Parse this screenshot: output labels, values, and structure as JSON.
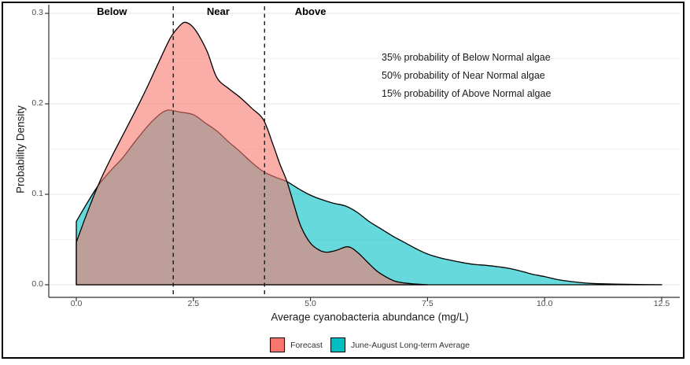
{
  "figure": {
    "background": "#FFFFFF",
    "border_color": "#000000"
  },
  "chart_data": {
    "type": "area",
    "subtype": "overlapping-density-curves",
    "title": "",
    "xlabel": "Average cyanobacteria abundance (mg/L)",
    "ylabel": "Probability Density",
    "xlim": [
      0,
      12.5
    ],
    "ylim": [
      0,
      0.3
    ],
    "grid": "horizontal-only",
    "x_ticks": {
      "values": [
        0,
        2.5,
        5,
        7.5,
        10,
        12.5
      ],
      "labels": [
        "0.0",
        "2.5",
        "5.0",
        "7.5",
        "10.0",
        "12.5"
      ]
    },
    "y_ticks": {
      "values": [
        0,
        0.1,
        0.2,
        0.3
      ],
      "labels": [
        "0.0",
        "0.1",
        "0.2",
        "0.3"
      ]
    },
    "y_minor_gridlines": [
      0.05,
      0.15,
      0.25
    ],
    "threshold_lines": {
      "style": "dashed",
      "color": "#1A1A1A",
      "x_values": [
        2.07,
        4.02
      ]
    },
    "region_labels": [
      {
        "text": "Below",
        "x": 0.76
      },
      {
        "text": "Near",
        "x": 3.03
      },
      {
        "text": "Above",
        "x": 5.0
      }
    ],
    "annotations": [
      {
        "text": "35% probability of Below Normal algae"
      },
      {
        "text": "50% probability of Near Normal algae"
      },
      {
        "text": "15% probability of Above Normal algae"
      }
    ],
    "series": [
      {
        "name": "June-August Long-term Average",
        "color": "#00BFC4",
        "fill_opacity": 0.6,
        "outline": "#000000",
        "points": [
          [
            0,
            0.07
          ],
          [
            0.25,
            0.092
          ],
          [
            0.5,
            0.112
          ],
          [
            0.75,
            0.127
          ],
          [
            1,
            0.141
          ],
          [
            1.25,
            0.158
          ],
          [
            1.5,
            0.174
          ],
          [
            1.75,
            0.187
          ],
          [
            1.95,
            0.193
          ],
          [
            2.2,
            0.191
          ],
          [
            2.5,
            0.188
          ],
          [
            2.75,
            0.179
          ],
          [
            3,
            0.17
          ],
          [
            3.25,
            0.158
          ],
          [
            3.5,
            0.147
          ],
          [
            3.75,
            0.135
          ],
          [
            4,
            0.125
          ],
          [
            4.25,
            0.119
          ],
          [
            4.5,
            0.114
          ],
          [
            4.75,
            0.106
          ],
          [
            5,
            0.099
          ],
          [
            5.25,
            0.094
          ],
          [
            5.5,
            0.09
          ],
          [
            5.75,
            0.087
          ],
          [
            6,
            0.08
          ],
          [
            6.25,
            0.07
          ],
          [
            6.5,
            0.062
          ],
          [
            6.75,
            0.054
          ],
          [
            7,
            0.047
          ],
          [
            7.25,
            0.04
          ],
          [
            7.5,
            0.034
          ],
          [
            7.75,
            0.03
          ],
          [
            8,
            0.027
          ],
          [
            8.25,
            0.0245
          ],
          [
            8.5,
            0.0225
          ],
          [
            8.75,
            0.0215
          ],
          [
            9,
            0.02
          ],
          [
            9.25,
            0.018
          ],
          [
            9.5,
            0.015
          ],
          [
            9.75,
            0.0115
          ],
          [
            10,
            0.009
          ],
          [
            10.25,
            0.006
          ],
          [
            10.5,
            0.004
          ],
          [
            10.75,
            0.0025
          ],
          [
            11,
            0.0015
          ],
          [
            11.5,
            0.0007
          ],
          [
            12,
            0.0003
          ],
          [
            12.5,
            0.0001
          ]
        ]
      },
      {
        "name": "Forecast",
        "color": "#F8766D",
        "fill_opacity": 0.6,
        "outline": "#000000",
        "points": [
          [
            0,
            0.047
          ],
          [
            0.25,
            0.082
          ],
          [
            0.5,
            0.114
          ],
          [
            0.75,
            0.141
          ],
          [
            1,
            0.166
          ],
          [
            1.25,
            0.191
          ],
          [
            1.5,
            0.217
          ],
          [
            1.75,
            0.245
          ],
          [
            2,
            0.272
          ],
          [
            2.15,
            0.283
          ],
          [
            2.3,
            0.29
          ],
          [
            2.45,
            0.287
          ],
          [
            2.6,
            0.277
          ],
          [
            2.8,
            0.257
          ],
          [
            3,
            0.229
          ],
          [
            3.25,
            0.217
          ],
          [
            3.5,
            0.207
          ],
          [
            3.75,
            0.195
          ],
          [
            4,
            0.182
          ],
          [
            4.2,
            0.155
          ],
          [
            4.35,
            0.133
          ],
          [
            4.5,
            0.114
          ],
          [
            4.65,
            0.088
          ],
          [
            4.8,
            0.064
          ],
          [
            5,
            0.046
          ],
          [
            5.2,
            0.038
          ],
          [
            5.35,
            0.036
          ],
          [
            5.55,
            0.038
          ],
          [
            5.8,
            0.042
          ],
          [
            6,
            0.036
          ],
          [
            6.2,
            0.026
          ],
          [
            6.4,
            0.016
          ],
          [
            6.6,
            0.009
          ],
          [
            6.8,
            0.004
          ],
          [
            7,
            0.002
          ],
          [
            7.2,
            0.001
          ],
          [
            7.5,
            0
          ]
        ]
      }
    ],
    "legend": {
      "position": "bottom-center",
      "items": [
        {
          "label": "Forecast",
          "color": "#F8766D"
        },
        {
          "label": "June-August Long-term Average",
          "color": "#00BFC4"
        }
      ]
    }
  }
}
